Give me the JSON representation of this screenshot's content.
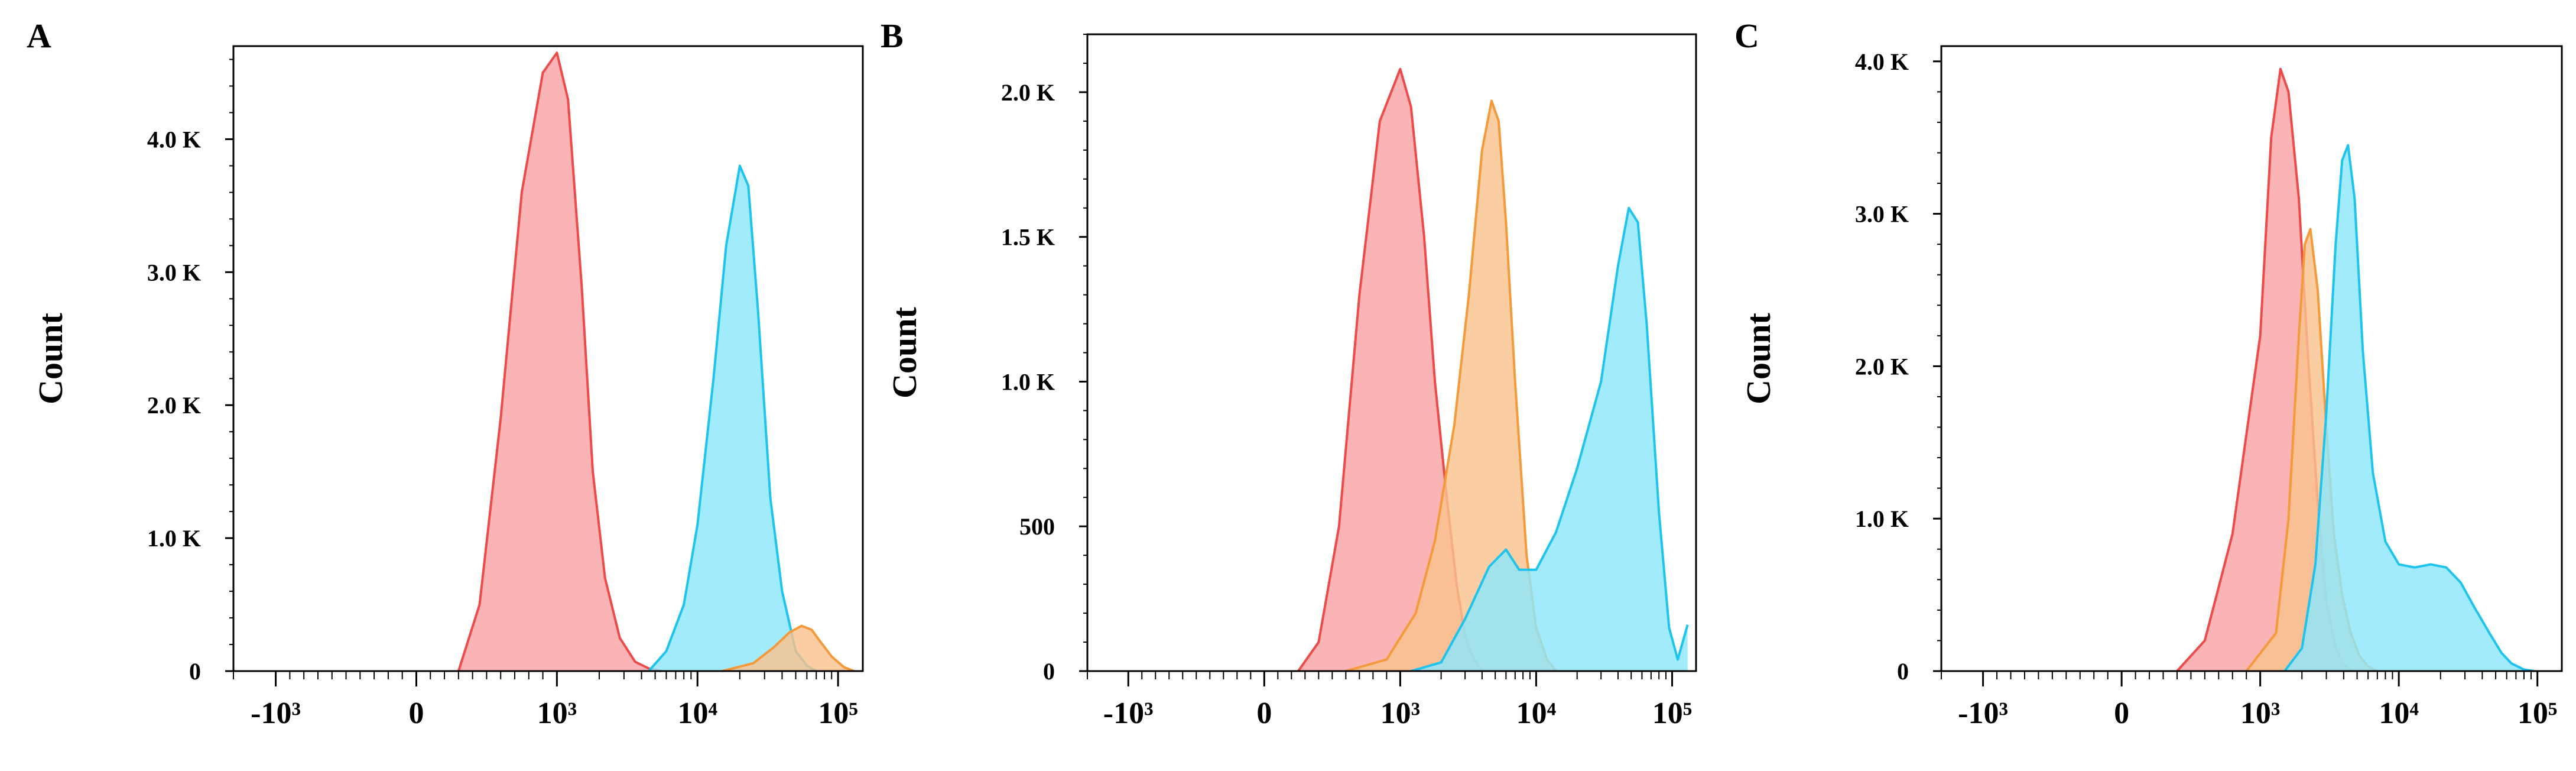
{
  "colors": {
    "red": "#ee4a4a",
    "red_fill": "#f9a3a6",
    "blue": "#1ec3ee",
    "blue_fill": "#8ee7fb",
    "orange": "#f59a3a",
    "orange_fill": "#f9c28e"
  },
  "chart_data": [
    {
      "type": "area",
      "panel_label": "A",
      "xlabel": "",
      "ylabel": "Count",
      "x_scale": "biexponential",
      "ylim": [
        0,
        4700
      ],
      "y_ticks": [
        0,
        1000,
        2000,
        3000,
        4000
      ],
      "y_tick_labels": [
        "0",
        "1.0 K",
        "2.0 K",
        "3.0 K",
        "4.0 K"
      ],
      "x_ticks": [
        -1000,
        0,
        1000,
        10000,
        100000
      ],
      "x_tick_labels": [
        "-10³",
        "0",
        "10³",
        "10⁴",
        "10⁵"
      ],
      "grid": false,
      "series": [
        {
          "color": "red",
          "x": [
            300,
            450,
            600,
            750,
            900,
            1000,
            1200,
            1500,
            1800,
            2200,
            2800,
            3600,
            4500,
            5500
          ],
          "y": [
            0,
            500,
            1900,
            3600,
            4500,
            4650,
            4300,
            2900,
            1500,
            700,
            250,
            70,
            20,
            0
          ]
        },
        {
          "color": "blue",
          "x": [
            4500,
            6000,
            8000,
            10000,
            13000,
            16000,
            20000,
            23000,
            27000,
            33000,
            40000,
            50000,
            60000,
            70000
          ],
          "y": [
            0,
            150,
            500,
            1100,
            2200,
            3200,
            3800,
            3650,
            2700,
            1300,
            600,
            150,
            40,
            0
          ]
        },
        {
          "color": "orange",
          "x": [
            15000,
            25000,
            35000,
            45000,
            55000,
            65000,
            75000,
            90000,
            110000,
            130000
          ],
          "y": [
            0,
            60,
            180,
            290,
            340,
            310,
            220,
            110,
            30,
            0
          ]
        }
      ]
    },
    {
      "type": "area",
      "panel_label": "B",
      "xlabel": "",
      "ylabel": "Count",
      "x_scale": "biexponential",
      "ylim": [
        0,
        2200
      ],
      "y_ticks": [
        0,
        500,
        1000,
        1500,
        2000
      ],
      "y_tick_labels": [
        "0",
        "500",
        "1.0 K",
        "1.5 K",
        "2.0 K"
      ],
      "x_ticks": [
        -1000,
        0,
        1000,
        10000,
        100000
      ],
      "x_tick_labels": [
        "-10³",
        "0",
        "10³",
        "10⁴",
        "10⁵"
      ],
      "grid": false,
      "series": [
        {
          "color": "red",
          "x": [
            250,
            400,
            550,
            700,
            850,
            1000,
            1200,
            1500,
            1800,
            2200,
            2600,
            3000,
            3500,
            4000
          ],
          "y": [
            0,
            100,
            500,
            1300,
            1900,
            2080,
            1950,
            1500,
            1000,
            600,
            300,
            120,
            40,
            0
          ]
        },
        {
          "color": "orange",
          "x": [
            600,
            900,
            1300,
            1800,
            2500,
            3200,
            4000,
            4700,
            5300,
            6000,
            7000,
            8500,
            10000,
            12000,
            14000
          ],
          "y": [
            0,
            40,
            200,
            450,
            850,
            1300,
            1800,
            1970,
            1900,
            1550,
            1000,
            400,
            150,
            40,
            0
          ]
        },
        {
          "color": "blue",
          "x": [
            1200,
            2000,
            3000,
            4500,
            6000,
            7500,
            10000,
            14000,
            20000,
            30000,
            40000,
            48000,
            56000,
            65000,
            80000,
            95000,
            110000,
            130000
          ],
          "y": [
            0,
            30,
            180,
            360,
            420,
            350,
            350,
            480,
            700,
            1000,
            1400,
            1600,
            1550,
            1200,
            550,
            150,
            40,
            160
          ]
        }
      ]
    },
    {
      "type": "area",
      "panel_label": "C",
      "xlabel": "",
      "ylabel": "Count",
      "x_scale": "biexponential",
      "ylim": [
        0,
        4100
      ],
      "y_ticks": [
        0,
        1000,
        2000,
        3000,
        4000
      ],
      "y_tick_labels": [
        "0",
        "1.0 K",
        "2.0 K",
        "3.0 K",
        "4.0 K"
      ],
      "x_ticks": [
        -1000,
        0,
        1000,
        10000,
        100000
      ],
      "x_tick_labels": [
        "-10³",
        "0",
        "10³",
        "10⁴",
        "10⁵"
      ],
      "grid": false,
      "series": [
        {
          "color": "red",
          "x": [
            400,
            600,
            800,
            1000,
            1200,
            1400,
            1600,
            1900,
            2200,
            2600,
            3000,
            3500,
            4000,
            4600
          ],
          "y": [
            0,
            200,
            900,
            2200,
            3500,
            3950,
            3800,
            3100,
            2100,
            1100,
            450,
            150,
            40,
            0
          ]
        },
        {
          "color": "orange",
          "x": [
            900,
            1300,
            1600,
            1900,
            2100,
            2300,
            2600,
            3000,
            3400,
            3900,
            4500,
            5200,
            6000,
            7000
          ],
          "y": [
            0,
            250,
            1000,
            2200,
            2800,
            2900,
            2500,
            1600,
            900,
            500,
            250,
            100,
            30,
            0
          ]
        },
        {
          "color": "blue",
          "x": [
            1500,
            2000,
            2500,
            3000,
            3500,
            3900,
            4300,
            4800,
            5500,
            6500,
            8000,
            10000,
            13000,
            17000,
            22000,
            28000,
            35000,
            45000,
            55000,
            65000,
            80000,
            95000
          ],
          "y": [
            0,
            150,
            700,
            1700,
            2800,
            3350,
            3450,
            3100,
            2100,
            1300,
            850,
            700,
            680,
            700,
            680,
            580,
            420,
            250,
            120,
            50,
            10,
            0
          ]
        }
      ]
    }
  ]
}
